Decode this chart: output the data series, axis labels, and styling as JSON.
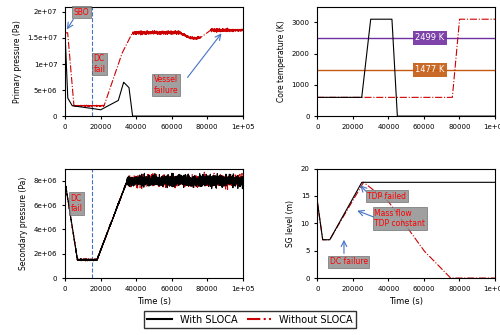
{
  "xlim": [
    0,
    100000
  ],
  "xticks": [
    0,
    20000,
    40000,
    60000,
    80000,
    100000
  ],
  "xticklabels": [
    "0",
    "20000",
    "40000",
    "60000",
    "80000",
    "1e+05"
  ],
  "pp_ylim": [
    0,
    21000000.0
  ],
  "pp_yticks": [
    0,
    5000000.0,
    10000000.0,
    15000000.0,
    20000000.0
  ],
  "pp_yticklabels": [
    "0",
    "5e+06",
    "1e+07",
    "1.5e+07",
    "2e+07"
  ],
  "sp_ylim": [
    0,
    9000000.0
  ],
  "sp_yticks": [
    0,
    2000000.0,
    4000000.0,
    6000000.0,
    8000000.0
  ],
  "sp_yticklabels": [
    "0",
    "2e+06",
    "4e+06",
    "6e+06",
    "8e+06"
  ],
  "ct_ylim": [
    0,
    3500
  ],
  "ct_yticks": [
    0,
    1000,
    2000,
    3000
  ],
  "sg_ylim": [
    0,
    20
  ],
  "sg_yticks": [
    0,
    5,
    10,
    15,
    20
  ],
  "dc_fail_time": 15000,
  "color_with": "#000000",
  "color_without": "#cc0000",
  "color_purple": "#7030a0",
  "color_orange": "#c55a11",
  "color_blue": "#4472c4",
  "legend_with": "With SLOCA",
  "legend_without": "Without SLOCA"
}
